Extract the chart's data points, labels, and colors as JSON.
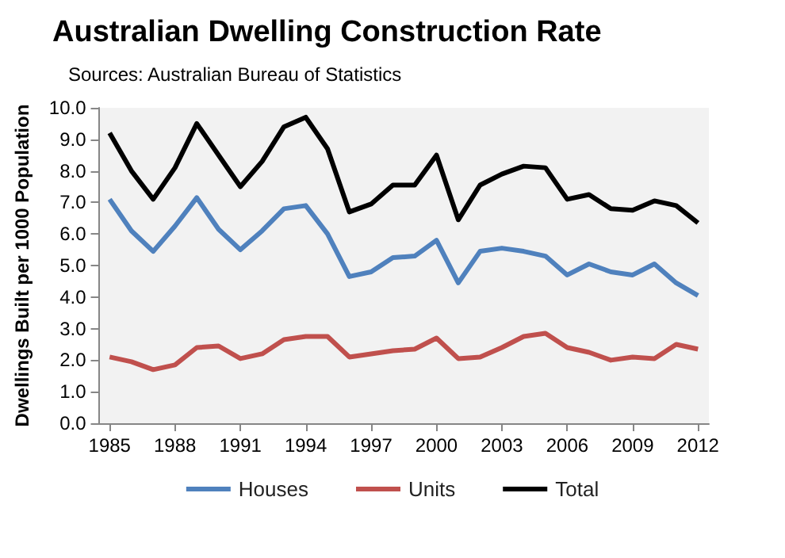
{
  "chart_data": {
    "type": "line",
    "title": "Australian Dwelling Construction Rate",
    "subtitle": "Sources: Australian Bureau of Statistics",
    "ylabel": "Dwellings Built per 1000 Population",
    "categories": [
      "1985",
      null,
      null,
      "1988",
      null,
      null,
      "1991",
      null,
      null,
      "1994",
      null,
      null,
      "1997",
      null,
      null,
      "2000",
      null,
      null,
      "2003",
      null,
      null,
      "2006",
      null,
      null,
      "2009",
      null,
      null,
      "2012"
    ],
    "series": [
      {
        "name": "Houses",
        "color": "#4f81bd",
        "values": [
          7.1,
          6.1,
          5.45,
          6.25,
          7.15,
          6.15,
          5.5,
          6.1,
          6.8,
          6.9,
          6.0,
          4.65,
          4.8,
          5.25,
          5.3,
          5.8,
          4.45,
          5.45,
          5.55,
          5.45,
          5.3,
          4.7,
          5.05,
          4.8,
          4.7,
          5.05,
          4.45,
          4.05
        ]
      },
      {
        "name": "Units",
        "color": "#c0504d",
        "values": [
          2.1,
          1.95,
          1.7,
          1.85,
          2.4,
          2.45,
          2.05,
          2.2,
          2.65,
          2.75,
          2.75,
          2.1,
          2.2,
          2.3,
          2.35,
          2.7,
          2.05,
          2.1,
          2.4,
          2.75,
          2.85,
          2.4,
          2.25,
          2.0,
          2.1,
          2.05,
          2.5,
          2.35
        ]
      },
      {
        "name": "Total",
        "color": "#000000",
        "values": [
          9.2,
          8.0,
          7.1,
          8.1,
          9.5,
          8.5,
          7.5,
          8.3,
          9.4,
          9.7,
          8.7,
          6.7,
          6.95,
          7.55,
          7.55,
          8.5,
          6.45,
          7.55,
          7.9,
          8.15,
          8.1,
          7.1,
          7.25,
          6.8,
          6.75,
          7.05,
          6.9,
          6.35
        ]
      }
    ],
    "ylim": [
      0,
      10
    ],
    "yticks": [
      {
        "value": 0,
        "label": "0.0"
      },
      {
        "value": 1,
        "label": "1.0"
      },
      {
        "value": 2,
        "label": "2.0"
      },
      {
        "value": 3,
        "label": "3.0"
      },
      {
        "value": 4,
        "label": "4.0"
      },
      {
        "value": 5,
        "label": "5.0"
      },
      {
        "value": 6,
        "label": "6.0"
      },
      {
        "value": 7,
        "label": "7.0"
      },
      {
        "value": 8,
        "label": "8.0"
      },
      {
        "value": 9,
        "label": "9.0"
      },
      {
        "value": 10,
        "label": "10.0"
      }
    ],
    "grid": false,
    "legend": "bottom",
    "marker": "none",
    "line_style": "solid"
  }
}
